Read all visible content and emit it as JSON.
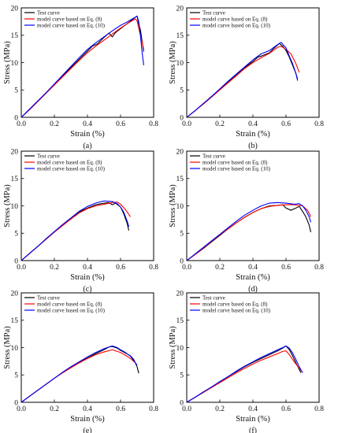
{
  "legend": [
    {
      "label": "Test curve",
      "color": "#000000"
    },
    {
      "label": "model curve based on Eq. (8)",
      "color": "#ff0000"
    },
    {
      "label": "model curve based on Eq. (10)",
      "color": "#0000ff"
    }
  ],
  "chart_data": [
    {
      "type": "line",
      "label": "(a)",
      "xlabel": "Strain (%)",
      "ylabel": "Stress (MPa)",
      "xlim": [
        0,
        0.8
      ],
      "ylim": [
        0,
        20
      ],
      "xticks": [
        "0.0",
        "0.2",
        "0.4",
        "0.6",
        "0.8"
      ],
      "yticks": [
        "0",
        "5",
        "10",
        "15",
        "20"
      ],
      "grid": false,
      "legend_position": "top-left",
      "series": [
        {
          "name": "Test curve",
          "x": [
            0,
            0.05,
            0.1,
            0.15,
            0.2,
            0.25,
            0.3,
            0.35,
            0.4,
            0.43,
            0.46,
            0.5,
            0.53,
            0.55,
            0.57,
            0.6,
            0.63,
            0.66,
            0.69,
            0.7,
            0.71,
            0.72,
            0.73,
            0.74
          ],
          "y": [
            0,
            1.4,
            2.9,
            4.4,
            6.0,
            7.6,
            9.1,
            10.6,
            12.1,
            13.0,
            13.4,
            14.6,
            15.4,
            14.7,
            15.5,
            16.2,
            16.9,
            17.6,
            18.3,
            18.5,
            17.0,
            16.0,
            14.0,
            12.0
          ]
        },
        {
          "name": "model curve based on Eq. (8)",
          "x": [
            0,
            0.05,
            0.1,
            0.15,
            0.2,
            0.25,
            0.3,
            0.35,
            0.4,
            0.45,
            0.5,
            0.55,
            0.6,
            0.65,
            0.69,
            0.7,
            0.72,
            0.74
          ],
          "y": [
            0,
            1.4,
            2.9,
            4.4,
            5.9,
            7.4,
            8.9,
            10.4,
            11.8,
            13.0,
            14.1,
            15.2,
            16.3,
            17.3,
            18.0,
            17.6,
            15.0,
            12.5
          ]
        },
        {
          "name": "model curve based on Eq. (10)",
          "x": [
            0,
            0.05,
            0.1,
            0.15,
            0.2,
            0.25,
            0.3,
            0.35,
            0.4,
            0.45,
            0.5,
            0.55,
            0.6,
            0.65,
            0.7,
            0.71,
            0.72,
            0.73,
            0.74
          ],
          "y": [
            0,
            1.5,
            3.0,
            4.5,
            6.1,
            7.7,
            9.3,
            10.9,
            12.4,
            13.6,
            14.7,
            15.8,
            16.8,
            17.6,
            18.5,
            17.5,
            15.0,
            12.0,
            9.5
          ]
        }
      ]
    },
    {
      "type": "line",
      "label": "(b)",
      "xlabel": "Strain (%)",
      "ylabel": "Stress (MPa)",
      "xlim": [
        0,
        0.8
      ],
      "ylim": [
        0,
        20
      ],
      "xticks": [
        "0.0",
        "0.2",
        "0.4",
        "0.6",
        "0.8"
      ],
      "yticks": [
        "0",
        "5",
        "10",
        "15",
        "20"
      ],
      "grid": false,
      "legend_position": "top-left",
      "series": [
        {
          "name": "Test curve",
          "x": [
            0,
            0.05,
            0.1,
            0.15,
            0.2,
            0.25,
            0.3,
            0.35,
            0.4,
            0.43,
            0.46,
            0.5,
            0.53,
            0.56,
            0.58,
            0.6,
            0.62,
            0.64,
            0.66,
            0.67
          ],
          "y": [
            0,
            1.2,
            2.5,
            3.8,
            5.1,
            6.5,
            7.8,
            9.1,
            10.2,
            11.0,
            11.3,
            11.8,
            12.7,
            13.5,
            13.0,
            12.2,
            11.0,
            9.5,
            8.0,
            7.0
          ]
        },
        {
          "name": "model curve based on Eq. (8)",
          "x": [
            0,
            0.05,
            0.1,
            0.15,
            0.2,
            0.25,
            0.3,
            0.35,
            0.4,
            0.45,
            0.5,
            0.55,
            0.57,
            0.6,
            0.63,
            0.66,
            0.68
          ],
          "y": [
            0,
            1.2,
            2.4,
            3.7,
            5.0,
            6.3,
            7.6,
            8.9,
            10.0,
            10.9,
            11.7,
            12.8,
            13.0,
            12.4,
            11.6,
            9.8,
            8.2
          ]
        },
        {
          "name": "model curve based on Eq. (10)",
          "x": [
            0,
            0.05,
            0.1,
            0.15,
            0.2,
            0.25,
            0.3,
            0.35,
            0.4,
            0.45,
            0.5,
            0.55,
            0.57,
            0.6,
            0.62,
            0.64,
            0.66,
            0.67
          ],
          "y": [
            0,
            1.2,
            2.5,
            3.8,
            5.2,
            6.6,
            7.9,
            9.2,
            10.5,
            11.6,
            12.2,
            13.3,
            13.7,
            12.7,
            11.2,
            9.8,
            8.0,
            6.7
          ]
        }
      ]
    },
    {
      "type": "line",
      "label": "(c)",
      "xlabel": "Strain (%)",
      "ylabel": "Stress (MPa)",
      "xlim": [
        0,
        0.8
      ],
      "ylim": [
        0,
        20
      ],
      "xticks": [
        "0.0",
        "0.2",
        "0.4",
        "0.6",
        "0.8"
      ],
      "yticks": [
        "0",
        "5",
        "10",
        "15",
        "20"
      ],
      "grid": false,
      "legend_position": "top-left",
      "series": [
        {
          "name": "Test curve",
          "x": [
            0,
            0.05,
            0.1,
            0.15,
            0.2,
            0.25,
            0.3,
            0.35,
            0.4,
            0.45,
            0.5,
            0.53,
            0.55,
            0.57,
            0.6,
            0.62,
            0.64,
            0.65
          ],
          "y": [
            0,
            1.3,
            2.6,
            3.9,
            5.2,
            6.5,
            7.7,
            8.9,
            9.6,
            10.2,
            10.5,
            10.6,
            10.2,
            10.5,
            9.8,
            8.5,
            6.8,
            5.5
          ]
        },
        {
          "name": "model curve based on Eq. (8)",
          "x": [
            0,
            0.05,
            0.1,
            0.15,
            0.2,
            0.25,
            0.3,
            0.35,
            0.4,
            0.45,
            0.5,
            0.55,
            0.58,
            0.6,
            0.63,
            0.66
          ],
          "y": [
            0,
            1.3,
            2.6,
            3.9,
            5.2,
            6.4,
            7.6,
            8.7,
            9.5,
            10.0,
            10.3,
            10.6,
            10.7,
            10.3,
            9.3,
            8.0
          ]
        },
        {
          "name": "model curve based on Eq. (10)",
          "x": [
            0,
            0.05,
            0.1,
            0.15,
            0.2,
            0.25,
            0.3,
            0.35,
            0.4,
            0.45,
            0.5,
            0.55,
            0.58,
            0.6,
            0.62,
            0.64,
            0.65
          ],
          "y": [
            0,
            1.3,
            2.6,
            4.0,
            5.3,
            6.6,
            7.8,
            9.0,
            9.9,
            10.5,
            10.9,
            10.8,
            10.4,
            9.8,
            8.8,
            7.2,
            6.2
          ]
        }
      ]
    },
    {
      "type": "line",
      "label": "(d)",
      "xlabel": "Strain (%)",
      "ylabel": "Stress (MPa)",
      "xlim": [
        0,
        0.8
      ],
      "ylim": [
        0,
        20
      ],
      "xticks": [
        "0.0",
        "0.2",
        "0.4",
        "0.6",
        "0.8"
      ],
      "yticks": [
        "0",
        "5",
        "10",
        "15",
        "20"
      ],
      "grid": false,
      "legend_position": "top-left",
      "series": [
        {
          "name": "Test curve",
          "x": [
            0,
            0.05,
            0.1,
            0.15,
            0.2,
            0.25,
            0.3,
            0.35,
            0.4,
            0.45,
            0.5,
            0.55,
            0.58,
            0.6,
            0.63,
            0.66,
            0.68,
            0.7,
            0.72,
            0.74,
            0.75
          ],
          "y": [
            0,
            1.1,
            2.2,
            3.4,
            4.6,
            5.8,
            6.9,
            7.9,
            8.8,
            9.5,
            10.0,
            10.1,
            10.2,
            9.6,
            9.2,
            9.6,
            9.9,
            9.0,
            8.0,
            6.5,
            5.2
          ]
        },
        {
          "name": "model curve based on Eq. (8)",
          "x": [
            0,
            0.05,
            0.1,
            0.15,
            0.2,
            0.25,
            0.3,
            0.35,
            0.4,
            0.45,
            0.5,
            0.55,
            0.6,
            0.65,
            0.7,
            0.73,
            0.75
          ],
          "y": [
            0,
            1.1,
            2.3,
            3.5,
            4.7,
            5.8,
            6.9,
            7.9,
            8.8,
            9.5,
            9.9,
            10.1,
            10.2,
            10.2,
            10.0,
            9.2,
            8.0
          ]
        },
        {
          "name": "model curve based on Eq. (10)",
          "x": [
            0,
            0.05,
            0.1,
            0.15,
            0.2,
            0.25,
            0.3,
            0.35,
            0.4,
            0.45,
            0.5,
            0.55,
            0.6,
            0.65,
            0.68,
            0.7,
            0.72,
            0.74,
            0.75
          ],
          "y": [
            0,
            1.2,
            2.4,
            3.6,
            4.8,
            6.0,
            7.2,
            8.3,
            9.2,
            10.0,
            10.5,
            10.6,
            10.5,
            10.3,
            10.4,
            10.0,
            9.2,
            8.0,
            7.0
          ]
        }
      ]
    },
    {
      "type": "line",
      "label": "(e)",
      "xlabel": "Strain (%)",
      "ylabel": "Stress (MPa)",
      "xlim": [
        0,
        0.8
      ],
      "ylim": [
        0,
        20
      ],
      "xticks": [
        "0.0",
        "0.2",
        "0.4",
        "0.6",
        "0.8"
      ],
      "yticks": [
        "0",
        "5",
        "10",
        "15",
        "20"
      ],
      "grid": false,
      "legend_position": "top-left",
      "series": [
        {
          "name": "Test curve",
          "x": [
            0,
            0.05,
            0.1,
            0.15,
            0.2,
            0.25,
            0.3,
            0.35,
            0.4,
            0.45,
            0.5,
            0.53,
            0.55,
            0.58,
            0.6,
            0.63,
            0.66,
            0.68,
            0.7,
            0.71
          ],
          "y": [
            0,
            1.1,
            2.2,
            3.3,
            4.4,
            5.4,
            6.4,
            7.3,
            8.1,
            8.9,
            9.6,
            10.1,
            10.2,
            9.9,
            9.5,
            9.0,
            8.5,
            7.8,
            6.5,
            5.3
          ]
        },
        {
          "name": "model curve based on Eq. (8)",
          "x": [
            0,
            0.05,
            0.1,
            0.15,
            0.2,
            0.25,
            0.3,
            0.35,
            0.4,
            0.45,
            0.5,
            0.55,
            0.6,
            0.63,
            0.66,
            0.69
          ],
          "y": [
            0,
            1.1,
            2.2,
            3.3,
            4.4,
            5.4,
            6.3,
            7.2,
            8.0,
            8.7,
            9.2,
            9.6,
            9.1,
            8.6,
            8.0,
            7.2
          ]
        },
        {
          "name": "model curve based on Eq. (10)",
          "x": [
            0,
            0.05,
            0.1,
            0.15,
            0.2,
            0.25,
            0.3,
            0.35,
            0.4,
            0.45,
            0.5,
            0.55,
            0.58,
            0.6,
            0.63,
            0.66,
            0.68,
            0.7
          ],
          "y": [
            0,
            1.1,
            2.2,
            3.3,
            4.4,
            5.5,
            6.5,
            7.4,
            8.3,
            9.1,
            9.8,
            10.3,
            10.0,
            9.6,
            9.1,
            8.4,
            7.6,
            6.8
          ]
        }
      ]
    },
    {
      "type": "line",
      "label": "(f)",
      "xlabel": "Strain (%)",
      "ylabel": "Stress (MPa)",
      "xlim": [
        0,
        0.8
      ],
      "ylim": [
        0,
        20
      ],
      "xticks": [
        "0.0",
        "0.2",
        "0.4",
        "0.6",
        "0.8"
      ],
      "yticks": [
        "0",
        "5",
        "10",
        "15",
        "20"
      ],
      "grid": false,
      "legend_position": "top-left",
      "series": [
        {
          "name": "Test curve",
          "x": [
            0,
            0.05,
            0.1,
            0.15,
            0.2,
            0.25,
            0.3,
            0.35,
            0.4,
            0.45,
            0.5,
            0.55,
            0.58,
            0.6,
            0.62,
            0.64,
            0.66,
            0.68,
            0.69
          ],
          "y": [
            0,
            0.9,
            1.8,
            2.8,
            3.7,
            4.7,
            5.6,
            6.5,
            7.3,
            8.0,
            8.7,
            9.4,
            9.9,
            10.3,
            9.6,
            8.5,
            7.2,
            6.0,
            5.4
          ]
        },
        {
          "name": "model curve based on Eq. (8)",
          "x": [
            0,
            0.05,
            0.1,
            0.15,
            0.2,
            0.25,
            0.3,
            0.35,
            0.4,
            0.45,
            0.5,
            0.55,
            0.58,
            0.6,
            0.62,
            0.65,
            0.68,
            0.7
          ],
          "y": [
            0,
            0.9,
            1.8,
            2.7,
            3.6,
            4.5,
            5.4,
            6.2,
            7.0,
            7.7,
            8.3,
            8.9,
            9.3,
            9.4,
            8.7,
            7.4,
            6.2,
            5.5
          ]
        },
        {
          "name": "model curve based on Eq. (10)",
          "x": [
            0,
            0.05,
            0.1,
            0.15,
            0.2,
            0.25,
            0.3,
            0.35,
            0.4,
            0.45,
            0.5,
            0.55,
            0.58,
            0.6,
            0.62,
            0.64,
            0.66,
            0.68,
            0.7
          ],
          "y": [
            0,
            0.9,
            1.9,
            2.8,
            3.8,
            4.7,
            5.7,
            6.6,
            7.4,
            8.2,
            8.9,
            9.6,
            10.0,
            10.3,
            9.9,
            9.0,
            7.8,
            6.5,
            5.4
          ]
        }
      ]
    }
  ]
}
